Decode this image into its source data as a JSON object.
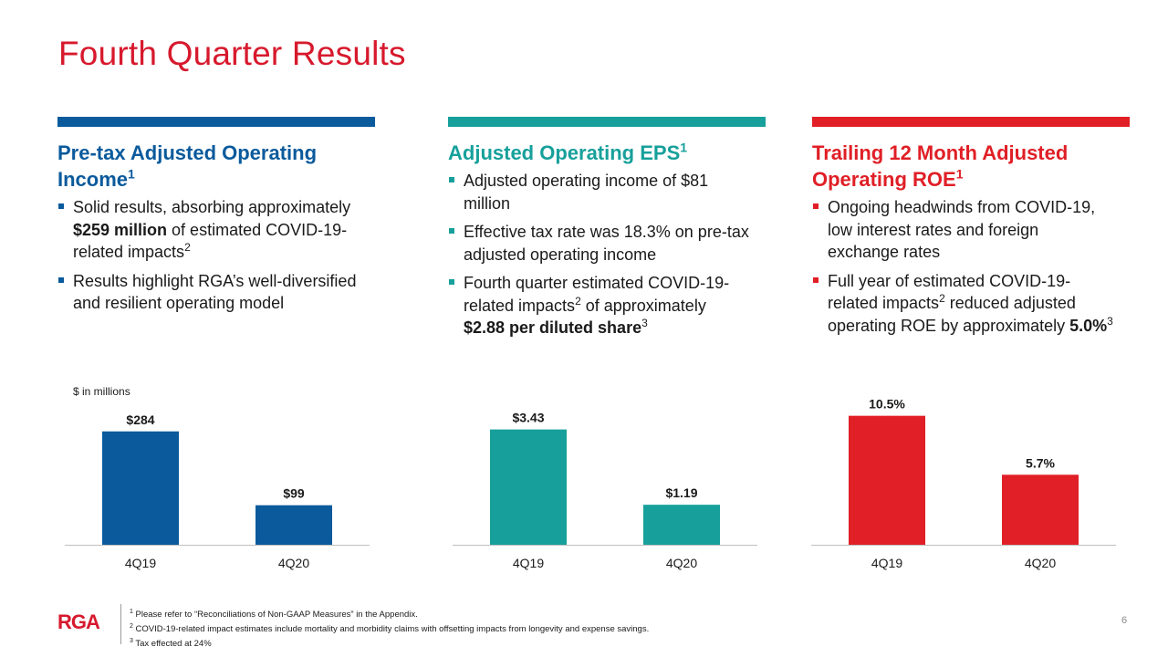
{
  "title": "Fourth Quarter Results",
  "colors": {
    "blue": "#0a5a9c",
    "teal": "#17a09b",
    "red": "#e01f26",
    "title_red": "#d7192d"
  },
  "columns": [
    {
      "heading": "Pre-tax Adjusted Operating Income",
      "heading_sup": "1",
      "bullets": [
        {
          "parts": [
            {
              "t": "Solid results, absorbing approximately "
            },
            {
              "t": "$259 million",
              "b": true
            },
            {
              "t": " of estimated COVID-19-related impacts"
            },
            {
              "t": "2",
              "sup": true
            }
          ]
        },
        {
          "parts": [
            {
              "t": "Results highlight RGA’s well-diversified and resilient operating model"
            }
          ]
        }
      ]
    },
    {
      "heading": "Adjusted Operating EPS",
      "heading_sup": "1",
      "bullets": [
        {
          "parts": [
            {
              "t": "Adjusted operating income of $81 million"
            }
          ]
        },
        {
          "parts": [
            {
              "t": "Effective tax rate was 18.3% on pre-tax adjusted operating income"
            }
          ]
        },
        {
          "parts": [
            {
              "t": "Fourth quarter estimated COVID-19-related impacts"
            },
            {
              "t": "2",
              "sup": true
            },
            {
              "t": " of approximately "
            },
            {
              "t": "$2.88 per diluted share",
              "b": true
            },
            {
              "t": "3",
              "sup": true
            }
          ]
        }
      ]
    },
    {
      "heading": "Trailing 12 Month Adjusted Operating ROE",
      "heading_sup": "1",
      "bullets": [
        {
          "parts": [
            {
              "t": "Ongoing headwinds from COVID-19, low interest rates and foreign exchange rates"
            }
          ]
        },
        {
          "parts": [
            {
              "t": "Full year of estimated COVID-19-related impacts"
            },
            {
              "t": "2",
              "sup": true
            },
            {
              "t": " reduced adjusted operating ROE by approximately "
            },
            {
              "t": "5.0%",
              "b": true
            },
            {
              "t": "3",
              "sup": true
            }
          ]
        }
      ]
    }
  ],
  "units_label": "$ in millions",
  "chart_data": [
    {
      "type": "bar",
      "categories": [
        "4Q19",
        "4Q20"
      ],
      "values": [
        284,
        99
      ],
      "data_labels": [
        "$284",
        "$99"
      ],
      "ylim": [
        0,
        400
      ],
      "color": "#0a5a9c",
      "ylabel": "$ in millions"
    },
    {
      "type": "bar",
      "categories": [
        "4Q19",
        "4Q20"
      ],
      "values": [
        3.43,
        1.19
      ],
      "data_labels": [
        "$3.43",
        "$1.19"
      ],
      "ylim": [
        0,
        4.75
      ],
      "color": "#17a09b"
    },
    {
      "type": "bar",
      "categories": [
        "4Q19",
        "4Q20"
      ],
      "values": [
        10.5,
        5.7
      ],
      "data_labels": [
        "10.5%",
        "5.7%"
      ],
      "ylim": [
        0,
        13
      ],
      "color": "#e01f26"
    }
  ],
  "footer": {
    "logo_text": "RGA",
    "footnotes": [
      {
        "num": "1",
        "text": "Please refer to “Reconciliations of Non-GAAP Measures” in the Appendix."
      },
      {
        "num": "2",
        "text": "COVID-19-related impact estimates include mortality and morbidity claims with offsetting impacts from longevity and expense savings."
      },
      {
        "num": "3",
        "text": "Tax effected at 24%"
      }
    ],
    "page_number": "6"
  }
}
